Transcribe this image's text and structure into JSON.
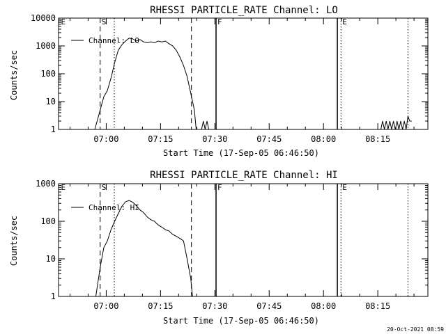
{
  "chart_data": [
    {
      "type": "line",
      "title": "RHESSI PARTICLE_RATE Channel: LO",
      "xlabel": "Start Time (17-Sep-05 06:46:50)",
      "ylabel": "Counts/sec",
      "yscale": "log",
      "ylim": [
        1,
        10000
      ],
      "xlim_minutes": [
        0,
        102
      ],
      "x_ticks": [
        {
          "min": 13.17,
          "label": "07:00"
        },
        {
          "min": 28.17,
          "label": "07:15"
        },
        {
          "min": 43.17,
          "label": "07:30"
        },
        {
          "min": 58.17,
          "label": "07:45"
        },
        {
          "min": 73.17,
          "label": "08:00"
        },
        {
          "min": 88.17,
          "label": "08:15"
        }
      ],
      "y_ticks": [
        {
          "v": 1,
          "label": "1"
        },
        {
          "v": 10,
          "label": "10"
        },
        {
          "v": 100,
          "label": "100"
        },
        {
          "v": 1000,
          "label": "1000"
        },
        {
          "v": 10000,
          "label": "10000"
        }
      ],
      "legend": "Channel: LO",
      "markers": [
        {
          "min": 0.3,
          "label": "E",
          "style": "none"
        },
        {
          "min": 11.5,
          "label": "S",
          "style": "dashed"
        },
        {
          "min": 15.4,
          "label": "",
          "style": "dotted"
        },
        {
          "min": 36.7,
          "label": "",
          "style": "dashed"
        },
        {
          "min": 43.5,
          "label": "F",
          "style": "solid"
        },
        {
          "min": 77.0,
          "label": "",
          "style": "solid"
        },
        {
          "min": 78.0,
          "label": "E",
          "style": "dotted"
        },
        {
          "min": 96.5,
          "label": "",
          "style": "dotted"
        }
      ],
      "series": [
        {
          "name": "Channel: LO",
          "segments": [
            [
              [
                10.0,
                1
              ],
              [
                11.5,
                5
              ],
              [
                12.5,
                15
              ],
              [
                13.5,
                25
              ],
              [
                14.5,
                70
              ],
              [
                15.5,
                250
              ],
              [
                16.5,
                700
              ],
              [
                17.5,
                1100
              ],
              [
                18.5,
                1500
              ],
              [
                19.5,
                1900
              ],
              [
                20.5,
                1800
              ],
              [
                21.5,
                1500
              ],
              [
                22.5,
                1700
              ],
              [
                23.5,
                1400
              ],
              [
                24.5,
                1300
              ],
              [
                25.5,
                1400
              ],
              [
                26.5,
                1300
              ],
              [
                27.5,
                1500
              ],
              [
                28.5,
                1400
              ],
              [
                29.5,
                1500
              ],
              [
                30.5,
                1200
              ],
              [
                31.5,
                1000
              ],
              [
                32.5,
                700
              ],
              [
                33.5,
                400
              ],
              [
                34.5,
                200
              ],
              [
                35.5,
                80
              ],
              [
                36.5,
                20
              ],
              [
                37.5,
                5
              ],
              [
                38.0,
                1
              ]
            ],
            [
              [
                39.5,
                1
              ],
              [
                40.0,
                2
              ],
              [
                40.5,
                1
              ],
              [
                41.0,
                2
              ],
              [
                41.5,
                1
              ]
            ],
            [
              [
                89.0,
                1
              ],
              [
                89.5,
                2
              ],
              [
                90.0,
                1
              ],
              [
                90.5,
                2
              ],
              [
                91.0,
                1
              ],
              [
                91.5,
                2
              ],
              [
                92.0,
                1
              ],
              [
                92.5,
                2
              ],
              [
                93.0,
                1
              ],
              [
                93.5,
                2
              ],
              [
                94.0,
                1
              ],
              [
                94.5,
                2
              ],
              [
                95.0,
                1
              ],
              [
                95.5,
                2
              ],
              [
                96.0,
                1
              ],
              [
                96.5,
                3
              ],
              [
                97.0,
                2
              ],
              [
                97.5,
                2
              ]
            ]
          ]
        }
      ]
    },
    {
      "type": "line",
      "title": "RHESSI PARTICLE_RATE Channel: HI",
      "xlabel": "Start Time (17-Sep-05 06:46:50)",
      "ylabel": "Counts/sec",
      "yscale": "log",
      "ylim": [
        1,
        1000
      ],
      "xlim_minutes": [
        0,
        102
      ],
      "x_ticks": [
        {
          "min": 13.17,
          "label": "07:00"
        },
        {
          "min": 28.17,
          "label": "07:15"
        },
        {
          "min": 43.17,
          "label": "07:30"
        },
        {
          "min": 58.17,
          "label": "07:45"
        },
        {
          "min": 73.17,
          "label": "08:00"
        },
        {
          "min": 88.17,
          "label": "08:15"
        }
      ],
      "y_ticks": [
        {
          "v": 1,
          "label": "1"
        },
        {
          "v": 10,
          "label": "10"
        },
        {
          "v": 100,
          "label": "100"
        },
        {
          "v": 1000,
          "label": "1000"
        }
      ],
      "legend": "Channel: HI",
      "markers": [
        {
          "min": 0.3,
          "label": "E",
          "style": "none"
        },
        {
          "min": 11.5,
          "label": "S",
          "style": "dashed"
        },
        {
          "min": 15.4,
          "label": "",
          "style": "dotted"
        },
        {
          "min": 36.7,
          "label": "",
          "style": "dashed"
        },
        {
          "min": 43.5,
          "label": "F",
          "style": "solid"
        },
        {
          "min": 77.0,
          "label": "",
          "style": "solid"
        },
        {
          "min": 78.0,
          "label": "E",
          "style": "dotted"
        },
        {
          "min": 96.5,
          "label": "",
          "style": "dotted"
        }
      ],
      "series": [
        {
          "name": "Channel: HI",
          "segments": [
            [
              [
                10.3,
                1
              ],
              [
                11.5,
                6
              ],
              [
                12.5,
                20
              ],
              [
                13.5,
                30
              ],
              [
                14.5,
                60
              ],
              [
                15.5,
                100
              ],
              [
                16.5,
                160
              ],
              [
                17.5,
                250
              ],
              [
                18.5,
                330
              ],
              [
                19.5,
                360
              ],
              [
                20.5,
                320
              ],
              [
                21.5,
                260
              ],
              [
                22.5,
                200
              ],
              [
                23.5,
                170
              ],
              [
                24.5,
                130
              ],
              [
                25.5,
                110
              ],
              [
                26.5,
                100
              ],
              [
                27.5,
                80
              ],
              [
                28.5,
                70
              ],
              [
                29.5,
                60
              ],
              [
                30.5,
                55
              ],
              [
                31.5,
                45
              ],
              [
                32.5,
                40
              ],
              [
                33.5,
                35
              ],
              [
                34.5,
                30
              ],
              [
                35.5,
                10
              ],
              [
                36.5,
                3
              ],
              [
                37.0,
                1
              ]
            ]
          ]
        }
      ]
    }
  ],
  "stamp": "20-Oct-2021 08:59"
}
